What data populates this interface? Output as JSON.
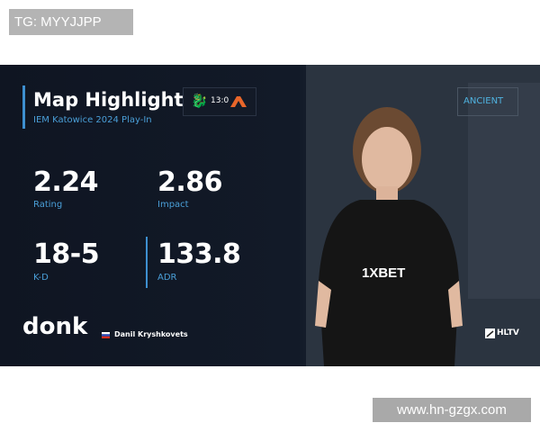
{
  "watermark_top": "TG: MYYJJPP",
  "watermark_bottom": "www.hn-gzgx.com",
  "header": {
    "title": "Map Highlight",
    "subtitle": "IEM Katowice 2024 Play-In",
    "score": "13:0",
    "team_left_icon": "team-spirit-dragon-logo",
    "team_right_icon": "apeks-logo"
  },
  "map": "ANCIENT",
  "stats": [
    {
      "value": "2.24",
      "label": "Rating"
    },
    {
      "value": "2.86",
      "label": "Impact"
    },
    {
      "value": "18-5",
      "label": "K-D"
    },
    {
      "value": "133.8",
      "label": "ADR"
    }
  ],
  "player": {
    "nick": "donk",
    "name": "Danil Kryshkovets",
    "flag": "russia"
  },
  "brand": "HLTV",
  "jersey_text": "1XBET",
  "colors": {
    "accent": "#3d8fd0",
    "label": "#4a9fd8",
    "apeks": "#e8662a"
  }
}
